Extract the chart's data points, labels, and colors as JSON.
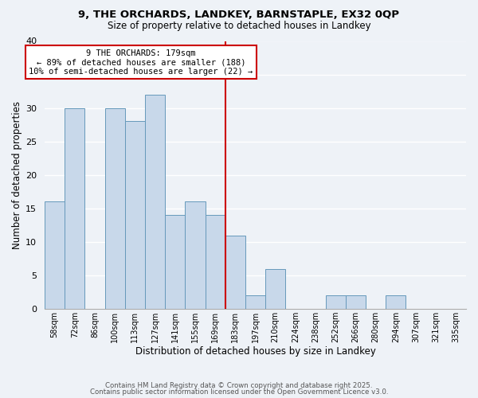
{
  "title": "9, THE ORCHARDS, LANDKEY, BARNSTAPLE, EX32 0QP",
  "subtitle": "Size of property relative to detached houses in Landkey",
  "xlabel": "Distribution of detached houses by size in Landkey",
  "ylabel": "Number of detached properties",
  "bar_color": "#c8d8ea",
  "bar_edge_color": "#6699bb",
  "background_color": "#eef2f7",
  "grid_color": "#ffffff",
  "categories": [
    "58sqm",
    "72sqm",
    "86sqm",
    "100sqm",
    "113sqm",
    "127sqm",
    "141sqm",
    "155sqm",
    "169sqm",
    "183sqm",
    "197sqm",
    "210sqm",
    "224sqm",
    "238sqm",
    "252sqm",
    "266sqm",
    "280sqm",
    "294sqm",
    "307sqm",
    "321sqm",
    "335sqm"
  ],
  "values": [
    16,
    30,
    0,
    30,
    28,
    32,
    14,
    16,
    14,
    11,
    2,
    6,
    0,
    0,
    2,
    2,
    0,
    2,
    0,
    0,
    0
  ],
  "ylim": [
    0,
    40
  ],
  "yticks": [
    0,
    5,
    10,
    15,
    20,
    25,
    30,
    35,
    40
  ],
  "vline_idx": 9,
  "vline_color": "#cc0000",
  "annotation_title": "9 THE ORCHARDS: 179sqm",
  "annotation_line1": "← 89% of detached houses are smaller (188)",
  "annotation_line2": "10% of semi-detached houses are larger (22) →",
  "annotation_box_color": "#ffffff",
  "annotation_box_edge": "#cc0000",
  "footer1": "Contains HM Land Registry data © Crown copyright and database right 2025.",
  "footer2": "Contains public sector information licensed under the Open Government Licence v3.0."
}
